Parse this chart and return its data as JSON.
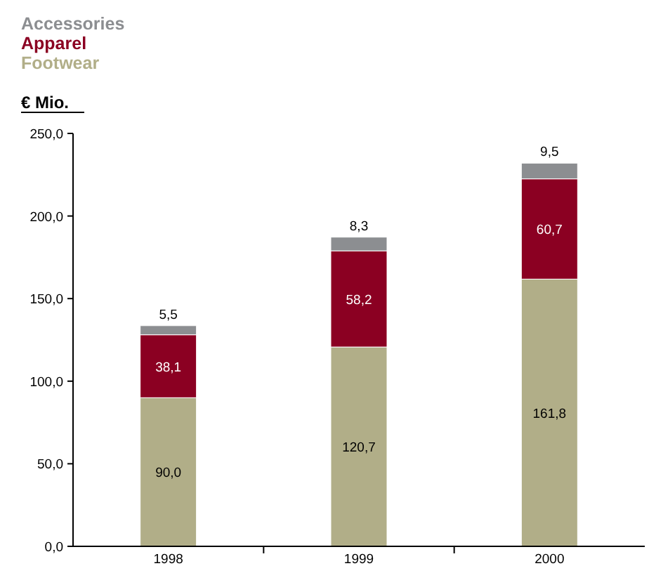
{
  "chart_data": {
    "type": "bar",
    "stacked": true,
    "ylabel": "€ Mio.",
    "categories": [
      "1998",
      "1999",
      "2000"
    ],
    "series": [
      {
        "name": "Footwear",
        "color": "#b1ae88",
        "values": [
          90.0,
          120.7,
          161.8
        ],
        "value_labels": [
          "90,0",
          "120,7",
          "161,8"
        ]
      },
      {
        "name": "Apparel",
        "color": "#8b0022",
        "values": [
          38.1,
          58.2,
          60.7
        ],
        "value_labels": [
          "38,1",
          "58,2",
          "60,7"
        ]
      },
      {
        "name": "Accessories",
        "color": "#8c8e91",
        "values": [
          5.5,
          8.3,
          9.5
        ],
        "value_labels": [
          "5,5",
          "8,3",
          "9,5"
        ]
      }
    ],
    "ylim": [
      0,
      250
    ],
    "yticks": [
      {
        "value": 0,
        "label": "0,0"
      },
      {
        "value": 50,
        "label": "50,0"
      },
      {
        "value": 100,
        "label": "100,0"
      },
      {
        "value": 150,
        "label": "150,0"
      },
      {
        "value": 200,
        "label": "200,0"
      },
      {
        "value": 250,
        "label": "250,0"
      }
    ],
    "legend": "top left",
    "grid": false
  }
}
